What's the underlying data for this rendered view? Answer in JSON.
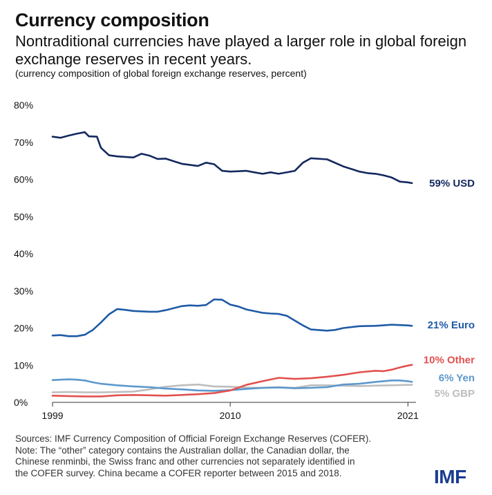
{
  "header": {
    "title": "Currency composition",
    "subtitle": "Nontraditional currencies have played a larger role in global foreign exchange reserves in recent years.",
    "unit_note": "(currency composition of global foreign exchange reserves, percent)"
  },
  "footer": {
    "lines": [
      "Sources: IMF Currency Composition of Official Foreign Exchange Reserves (COFER).",
      "Note: The “other” category contains the Australian dollar, the Canadian dollar, the",
      "Chinese renminbi, the Swiss franc and other currencies not separately identified in",
      "the COFER survey. China became a COFER reporter between 2015 and 2018."
    ],
    "logo": "IMF"
  },
  "colors": {
    "usd": "#12285e",
    "euro": "#1f5aa6",
    "other": "#e2514f",
    "yen": "#5b98cc",
    "gbp": "#bdbdbd"
  },
  "chart_data": {
    "type": "line",
    "xlim": [
      1999,
      2021.5
    ],
    "ylim": [
      0,
      80
    ],
    "x_ticks": [
      1999,
      2010,
      2021
    ],
    "x_tick_labels": [
      "1999",
      "2010",
      "2021"
    ],
    "y_ticks": [
      0,
      10,
      20,
      30,
      40,
      50,
      60,
      70,
      80
    ],
    "y_tick_labels": [
      "0%",
      "10%",
      "20%",
      "30%",
      "40%",
      "50%",
      "60%",
      "70%",
      "80%"
    ],
    "grid": false,
    "legend": "inline labels at line ends",
    "series": [
      {
        "name": "USD",
        "label": "59% USD",
        "color": "#12285e",
        "x": [
          1999,
          1999.5,
          2000,
          2000.5,
          2001,
          2001.25,
          2001.75,
          2002,
          2002.5,
          2003,
          2004,
          2004.5,
          2005,
          2005.5,
          2006,
          2007,
          2008,
          2008.5,
          2009,
          2009.5,
          2010,
          2010.5,
          2011,
          2011.5,
          2012,
          2012.5,
          2013,
          2014,
          2014.5,
          2015,
          2016,
          2017,
          2018,
          2018.5,
          2019,
          2019.5,
          2020,
          2020.5,
          2021,
          2021.25
        ],
        "y": [
          71.5,
          71.2,
          71.8,
          72.3,
          72.7,
          71.6,
          71.5,
          68.5,
          66.5,
          66.2,
          65.9,
          66.9,
          66.4,
          65.5,
          65.6,
          64.2,
          63.6,
          64.5,
          64.1,
          62.3,
          62.1,
          62.2,
          62.3,
          61.9,
          61.5,
          61.9,
          61.5,
          62.3,
          64.5,
          65.7,
          65.4,
          63.5,
          62.1,
          61.7,
          61.5,
          61.1,
          60.5,
          59.4,
          59.2,
          59.0
        ]
      },
      {
        "name": "Euro",
        "label": "21% Euro",
        "color": "#1f5aa6",
        "x": [
          1999,
          1999.5,
          2000,
          2000.5,
          2001,
          2001.5,
          2002,
          2002.5,
          2003,
          2003.5,
          2004,
          2005,
          2005.5,
          2006,
          2007,
          2007.5,
          2008,
          2008.5,
          2009,
          2009.5,
          2010,
          2010.5,
          2011,
          2012,
          2012.5,
          2013,
          2013.5,
          2014,
          2014.5,
          2015,
          2016,
          2016.5,
          2017,
          2018,
          2019,
          2020,
          2020.5,
          2021,
          2021.25
        ],
        "y": [
          18.0,
          18.1,
          17.8,
          17.8,
          18.2,
          19.5,
          21.5,
          23.7,
          25.1,
          24.9,
          24.6,
          24.4,
          24.4,
          24.8,
          25.9,
          26.1,
          26.0,
          26.2,
          27.7,
          27.6,
          26.3,
          25.8,
          25.0,
          24.1,
          23.9,
          23.8,
          23.3,
          22.0,
          20.7,
          19.6,
          19.3,
          19.5,
          20.0,
          20.5,
          20.6,
          20.9,
          20.8,
          20.7,
          20.6
        ]
      },
      {
        "name": "Other",
        "label": "10% Other",
        "color": "#e2514f",
        "x": [
          1999,
          2000,
          2001,
          2002,
          2003,
          2004,
          2005,
          2006,
          2007,
          2008,
          2009,
          2010,
          2011,
          2012,
          2013,
          2014,
          2015,
          2016,
          2017,
          2018,
          2019,
          2019.5,
          2020,
          2020.5,
          2021,
          2021.25
        ],
        "y": [
          1.8,
          1.7,
          1.6,
          1.6,
          1.9,
          2.0,
          1.9,
          1.8,
          2.0,
          2.2,
          2.5,
          3.2,
          4.7,
          5.7,
          6.6,
          6.3,
          6.5,
          6.9,
          7.4,
          8.1,
          8.5,
          8.4,
          8.8,
          9.4,
          9.9,
          10.1
        ]
      },
      {
        "name": "Yen",
        "label": "6% Yen",
        "color": "#5b98cc",
        "x": [
          1999,
          1999.5,
          2000,
          2000.5,
          2001,
          2001.5,
          2002,
          2003,
          2004,
          2005,
          2006,
          2007,
          2008,
          2009,
          2010,
          2011,
          2012,
          2013,
          2014,
          2015,
          2016,
          2017,
          2018,
          2019,
          2020,
          2020.5,
          2021,
          2021.25
        ],
        "y": [
          6.0,
          6.1,
          6.2,
          6.1,
          5.9,
          5.4,
          5.0,
          4.6,
          4.3,
          4.1,
          3.7,
          3.5,
          3.2,
          3.1,
          3.3,
          3.6,
          3.9,
          4.0,
          3.8,
          3.9,
          4.1,
          4.8,
          5.0,
          5.5,
          5.9,
          5.9,
          5.7,
          5.5
        ]
      },
      {
        "name": "GBP",
        "label": "5% GBP",
        "color": "#bdbdbd",
        "x": [
          1999,
          2000,
          2001,
          2002,
          2003,
          2004,
          2005,
          2006,
          2007,
          2008,
          2009,
          2010,
          2011,
          2012,
          2013,
          2014,
          2015,
          2016,
          2017,
          2018,
          2019,
          2020,
          2021,
          2021.25
        ],
        "y": [
          2.7,
          2.8,
          2.7,
          2.7,
          2.8,
          2.9,
          3.5,
          4.2,
          4.6,
          4.8,
          4.3,
          4.2,
          4.0,
          3.9,
          4.1,
          3.9,
          4.6,
          4.6,
          4.5,
          4.4,
          4.5,
          4.6,
          4.7,
          4.7
        ]
      }
    ]
  }
}
